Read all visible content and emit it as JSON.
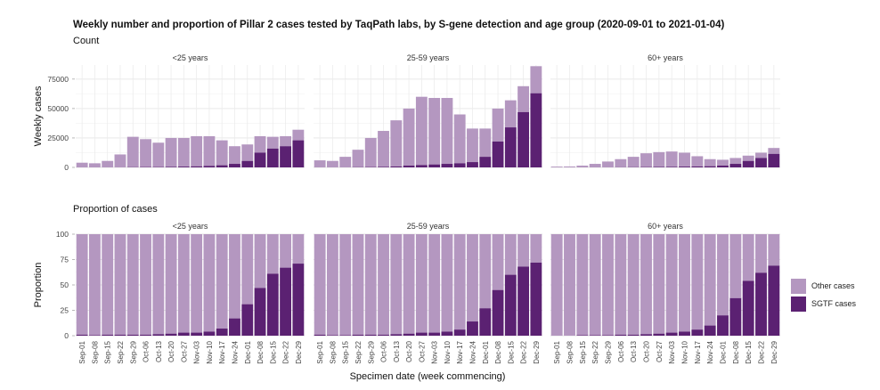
{
  "chart_data": {
    "title": "Weekly number and proportion of Pillar 2 cases tested by TaqPath labs, by S-gene detection and age group (2020-09-01 to 2021-01-04)",
    "xlabel": "Specimen date (week commencing)",
    "categories": [
      "Sep-01",
      "Sep-08",
      "Sep-15",
      "Sep-22",
      "Sep-29",
      "Oct-06",
      "Oct-13",
      "Oct-20",
      "Oct-27",
      "Nov-03",
      "Nov-10",
      "Nov-17",
      "Nov-24",
      "Dec-01",
      "Dec-08",
      "Dec-15",
      "Dec-22",
      "Dec-29"
    ],
    "panel_labels": [
      "<25 years",
      "25-59 years",
      "60+ years"
    ],
    "colors": {
      "other": "#b497c0",
      "sgtf": "#5b2172"
    },
    "count": {
      "subtitle": "Count",
      "type": "bar",
      "stacked": true,
      "ylabel": "Weekly cases",
      "ylim": [
        0,
        87000
      ],
      "yticks": [
        0,
        25000,
        50000,
        75000
      ],
      "ytick_labels": [
        "0",
        "25000",
        "50000",
        "75000"
      ],
      "panels": [
        {
          "label": "<25 years",
          "total": [
            4000,
            3500,
            5500,
            11000,
            26000,
            24000,
            21000,
            25000,
            25000,
            26500,
            26500,
            23000,
            18000,
            19500,
            26500,
            26000,
            26500,
            32000
          ],
          "sgtf": [
            0,
            0,
            0,
            0,
            200,
            300,
            300,
            500,
            700,
            900,
            1300,
            1800,
            3000,
            5500,
            12500,
            16000,
            18000,
            23000
          ]
        },
        {
          "label": "25-59 years",
          "total": [
            6000,
            5500,
            9000,
            15000,
            25000,
            31000,
            40000,
            50000,
            60000,
            59000,
            59000,
            45000,
            33000,
            33000,
            50000,
            57000,
            69000,
            86000
          ],
          "sgtf": [
            0,
            0,
            0,
            200,
            300,
            500,
            800,
            1500,
            2000,
            2500,
            3000,
            3500,
            4500,
            9000,
            22000,
            34000,
            47000,
            63000
          ]
        },
        {
          "label": "60+ years",
          "total": [
            700,
            800,
            1500,
            3000,
            5000,
            7000,
            9000,
            12000,
            13000,
            13500,
            12500,
            9500,
            7000,
            6500,
            8000,
            10000,
            12500,
            16500
          ],
          "sgtf": [
            0,
            0,
            0,
            0,
            0,
            100,
            200,
            300,
            400,
            500,
            700,
            800,
            1000,
            1500,
            3000,
            5500,
            8000,
            11500
          ]
        }
      ]
    },
    "proportion": {
      "subtitle": "Proportion of cases",
      "type": "bar",
      "stacked": true,
      "ylabel": "Proportion",
      "ylim": [
        0,
        100
      ],
      "yticks": [
        0,
        25,
        50,
        75,
        100
      ],
      "ytick_labels": [
        "0",
        "25",
        "50",
        "75",
        "100"
      ],
      "panels": [
        {
          "label": "<25 years",
          "sgtf": [
            1,
            0.5,
            1,
            1,
            1,
            1,
            1.5,
            2,
            3,
            3,
            4,
            7,
            17,
            31,
            47,
            61,
            67,
            71
          ]
        },
        {
          "label": "25-59 years",
          "sgtf": [
            1,
            0.5,
            0.5,
            1,
            1,
            1,
            1.5,
            2,
            3,
            3,
            4,
            6,
            14,
            27,
            45,
            60,
            68,
            72
          ]
        },
        {
          "label": "60+ years",
          "sgtf": [
            0,
            0,
            0.5,
            0.5,
            0.5,
            1,
            1,
            1.5,
            2,
            3,
            4,
            6,
            10,
            20,
            37,
            54,
            62,
            69
          ]
        }
      ]
    },
    "legend": [
      {
        "key": "other",
        "label": "Other cases"
      },
      {
        "key": "sgtf",
        "label": "SGTF cases"
      }
    ]
  }
}
